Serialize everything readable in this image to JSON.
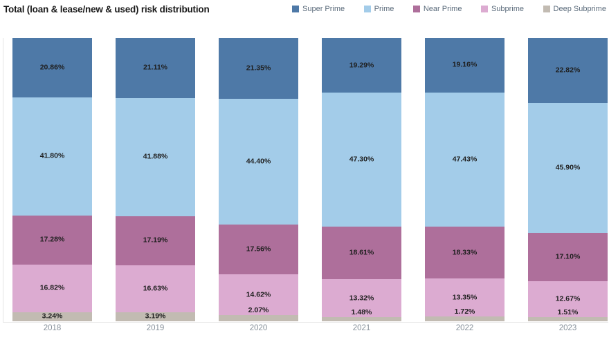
{
  "header": {
    "title": "Total (loan & lease/new & used) risk distribution"
  },
  "chart_data": {
    "type": "bar",
    "variant": "stacked-100",
    "title": "Total (loan & lease/new & used) risk distribution",
    "categories": [
      "2018",
      "2019",
      "2020",
      "2021",
      "2022",
      "2023"
    ],
    "series": [
      {
        "name": "Super Prime",
        "color": "#4e79a7",
        "values": [
          20.86,
          21.11,
          21.35,
          19.29,
          19.16,
          22.82
        ]
      },
      {
        "name": "Prime",
        "color": "#a3cce9",
        "values": [
          41.8,
          41.88,
          44.4,
          47.3,
          47.43,
          45.9
        ]
      },
      {
        "name": "Near Prime",
        "color": "#ae6f9b",
        "values": [
          17.28,
          17.19,
          17.56,
          18.61,
          18.33,
          17.1
        ]
      },
      {
        "name": "Subprime",
        "color": "#dcabd1",
        "values": [
          16.82,
          16.63,
          14.62,
          13.32,
          13.35,
          12.67
        ]
      },
      {
        "name": "Deep Subprime",
        "color": "#c2bbb2",
        "values": [
          3.24,
          3.19,
          2.07,
          1.48,
          1.72,
          1.51
        ]
      }
    ],
    "value_suffix": "%",
    "value_decimals": 2,
    "ylim": [
      0,
      100
    ],
    "xlabel": "",
    "ylabel": "",
    "grid": false,
    "legend_position": "top-right"
  }
}
